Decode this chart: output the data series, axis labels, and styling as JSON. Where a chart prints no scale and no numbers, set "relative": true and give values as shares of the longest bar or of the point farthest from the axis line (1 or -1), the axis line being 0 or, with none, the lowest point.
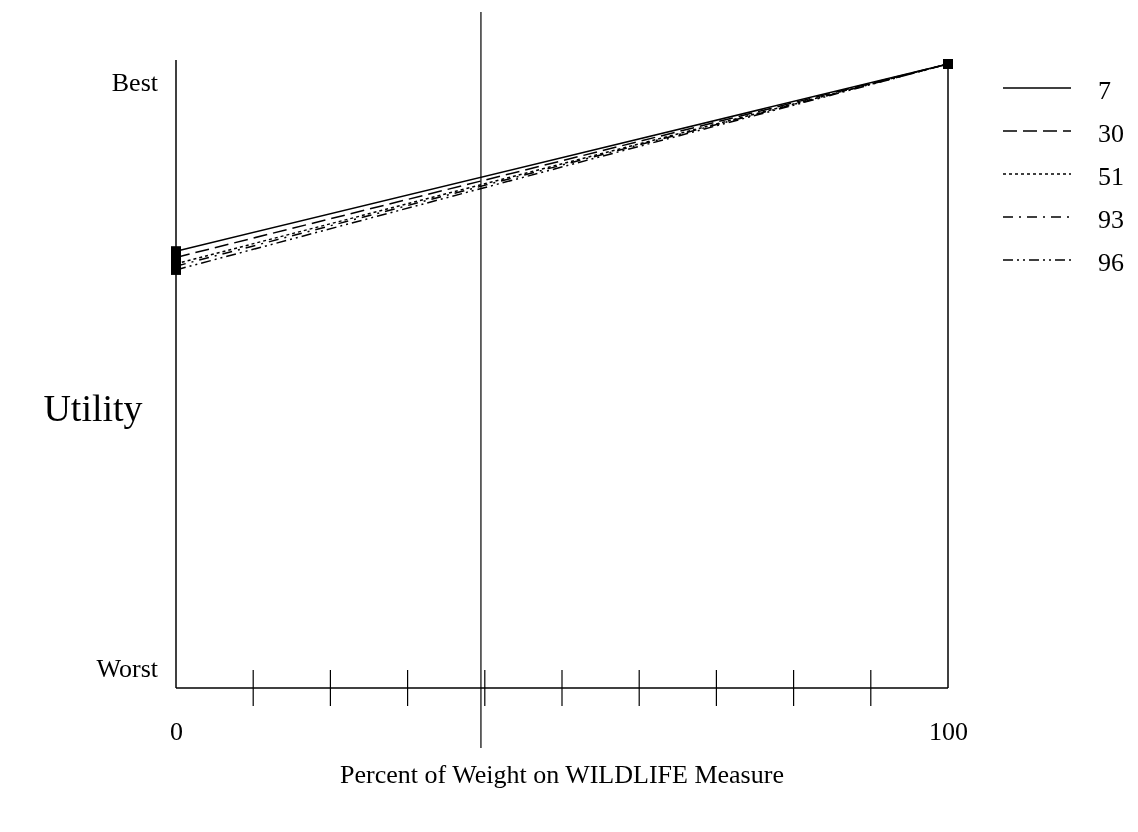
{
  "chart_data": {
    "type": "line",
    "xlabel": "Percent of Weight on WILDLIFE Measure",
    "ylabel": "Utility",
    "x": [
      0,
      100
    ],
    "xlim": [
      0,
      100
    ],
    "xticks": [
      0,
      100
    ],
    "relative": true,
    "annotations": [
      "Best",
      "Worst"
    ],
    "series": [
      {
        "name": "7",
        "color": "#000000",
        "line_style": "solid",
        "values": [
          0.7,
          1
        ]
      },
      {
        "name": "30",
        "color": "#000000",
        "line_style": "dashed",
        "values": [
          0.69,
          1
        ]
      },
      {
        "name": "51",
        "color": "#000000",
        "line_style": "dotted",
        "values": [
          0.68,
          1
        ]
      },
      {
        "name": "93",
        "color": "#000000",
        "line_style": "dashdot",
        "values": [
          0.676,
          1
        ]
      },
      {
        "name": "96",
        "color": "#000000",
        "line_style": "dashdotdot",
        "values": [
          0.67,
          1
        ]
      }
    ],
    "ref_lines": [
      {
        "axis": "x",
        "value": 39.5,
        "color": "#000000"
      }
    ],
    "marker": "square",
    "legend": "top right",
    "grid": false
  }
}
